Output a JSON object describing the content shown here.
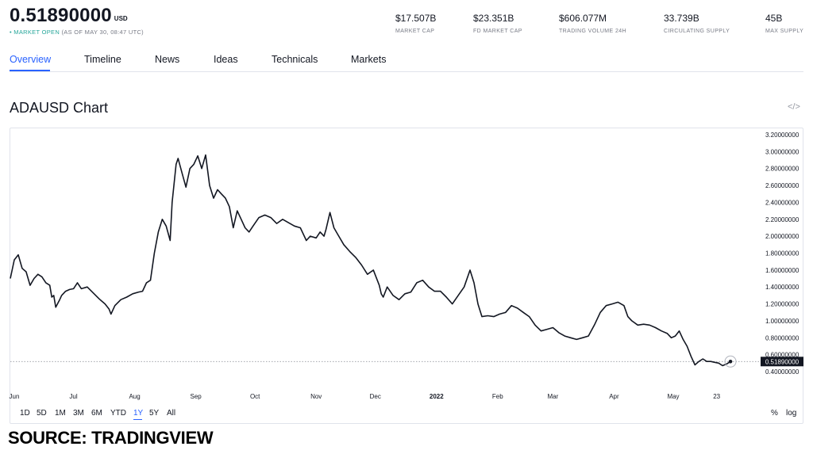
{
  "header": {
    "price": "0.51890000",
    "currency": "USD",
    "status_open": "• MARKET OPEN",
    "status_time": "(AS OF MAY 30, 08:47 UTC)"
  },
  "stats": [
    {
      "value": "$17.507B",
      "label": "MARKET CAP"
    },
    {
      "value": "$23.351B",
      "label": "FD MARKET CAP"
    },
    {
      "value": "$606.077M",
      "label": "TRADING VOLUME 24H"
    },
    {
      "value": "33.739B",
      "label": "CIRCULATING SUPPLY"
    },
    {
      "value": "45B",
      "label": "MAX SUPPLY"
    }
  ],
  "tabs": [
    "Overview",
    "Timeline",
    "News",
    "Ideas",
    "Technicals",
    "Markets"
  ],
  "active_tab": "Overview",
  "chart_section": {
    "title": "ADAUSD Chart",
    "embed_icon": "code-icon"
  },
  "ranges": [
    "1D",
    "5D",
    "1M",
    "3M",
    "6M",
    "YTD",
    "1Y",
    "5Y",
    "All"
  ],
  "active_range": "1Y",
  "scale_buttons": [
    "%",
    "log"
  ],
  "source": "SOURCE: TRADINGVIEW",
  "colors": {
    "accent": "#2962ff",
    "line": "#131722",
    "label_bg": "#131722"
  },
  "chart_data": {
    "type": "line",
    "symbol": "ADAUSD",
    "y_ticks": [
      "3.20000000",
      "3.00000000",
      "2.80000000",
      "2.60000000",
      "2.40000000",
      "2.20000000",
      "2.00000000",
      "1.80000000",
      "1.60000000",
      "1.40000000",
      "1.20000000",
      "1.00000000",
      "0.80000000",
      "0.60000000",
      "0.40000000"
    ],
    "ylim": [
      0.3,
      3.35
    ],
    "x_ticks": [
      {
        "label": "Jun",
        "date": "2021-06-01",
        "bold": false
      },
      {
        "label": "Jul",
        "date": "2021-07-01",
        "bold": false
      },
      {
        "label": "Aug",
        "date": "2021-08-01",
        "bold": false
      },
      {
        "label": "Sep",
        "date": "2021-09-01",
        "bold": false
      },
      {
        "label": "Oct",
        "date": "2021-10-01",
        "bold": false
      },
      {
        "label": "Nov",
        "date": "2021-11-01",
        "bold": false
      },
      {
        "label": "Dec",
        "date": "2021-12-01",
        "bold": false
      },
      {
        "label": "2022",
        "date": "2022-01-01",
        "bold": true
      },
      {
        "label": "Feb",
        "date": "2022-02-01",
        "bold": false
      },
      {
        "label": "Mar",
        "date": "2022-03-01",
        "bold": false
      },
      {
        "label": "Apr",
        "date": "2022-04-01",
        "bold": false
      },
      {
        "label": "May",
        "date": "2022-05-01",
        "bold": false
      },
      {
        "label": "23",
        "date": "2022-05-23",
        "bold": false
      }
    ],
    "last_value": 0.5189,
    "last_value_label": "0.51890000",
    "series": [
      {
        "points": [
          [
            "2021-05-30",
            1.5
          ],
          [
            "2021-06-01",
            1.72
          ],
          [
            "2021-06-03",
            1.78
          ],
          [
            "2021-06-05",
            1.62
          ],
          [
            "2021-06-07",
            1.58
          ],
          [
            "2021-06-09",
            1.42
          ],
          [
            "2021-06-11",
            1.5
          ],
          [
            "2021-06-13",
            1.55
          ],
          [
            "2021-06-15",
            1.52
          ],
          [
            "2021-06-17",
            1.45
          ],
          [
            "2021-06-19",
            1.42
          ],
          [
            "2021-06-20",
            1.28
          ],
          [
            "2021-06-21",
            1.3
          ],
          [
            "2021-06-22",
            1.16
          ],
          [
            "2021-06-24",
            1.25
          ],
          [
            "2021-06-25",
            1.3
          ],
          [
            "2021-06-27",
            1.35
          ],
          [
            "2021-06-29",
            1.37
          ],
          [
            "2021-07-01",
            1.38
          ],
          [
            "2021-07-03",
            1.45
          ],
          [
            "2021-07-05",
            1.38
          ],
          [
            "2021-07-08",
            1.4
          ],
          [
            "2021-07-11",
            1.33
          ],
          [
            "2021-07-14",
            1.26
          ],
          [
            "2021-07-17",
            1.2
          ],
          [
            "2021-07-19",
            1.14
          ],
          [
            "2021-07-20",
            1.08
          ],
          [
            "2021-07-22",
            1.18
          ],
          [
            "2021-07-25",
            1.25
          ],
          [
            "2021-07-28",
            1.28
          ],
          [
            "2021-07-31",
            1.32
          ],
          [
            "2021-08-03",
            1.34
          ],
          [
            "2021-08-05",
            1.35
          ],
          [
            "2021-08-07",
            1.45
          ],
          [
            "2021-08-09",
            1.48
          ],
          [
            "2021-08-11",
            1.8
          ],
          [
            "2021-08-13",
            2.05
          ],
          [
            "2021-08-15",
            2.2
          ],
          [
            "2021-08-17",
            2.12
          ],
          [
            "2021-08-19",
            1.95
          ],
          [
            "2021-08-20",
            2.4
          ],
          [
            "2021-08-22",
            2.85
          ],
          [
            "2021-08-23",
            2.92
          ],
          [
            "2021-08-25",
            2.75
          ],
          [
            "2021-08-27",
            2.58
          ],
          [
            "2021-08-29",
            2.8
          ],
          [
            "2021-08-31",
            2.85
          ],
          [
            "2021-09-02",
            2.95
          ],
          [
            "2021-09-04",
            2.8
          ],
          [
            "2021-09-06",
            2.96
          ],
          [
            "2021-09-08",
            2.6
          ],
          [
            "2021-09-10",
            2.45
          ],
          [
            "2021-09-12",
            2.55
          ],
          [
            "2021-09-14",
            2.5
          ],
          [
            "2021-09-16",
            2.45
          ],
          [
            "2021-09-18",
            2.35
          ],
          [
            "2021-09-20",
            2.1
          ],
          [
            "2021-09-22",
            2.3
          ],
          [
            "2021-09-24",
            2.2
          ],
          [
            "2021-09-26",
            2.1
          ],
          [
            "2021-09-28",
            2.05
          ],
          [
            "2021-09-30",
            2.12
          ],
          [
            "2021-10-03",
            2.22
          ],
          [
            "2021-10-06",
            2.25
          ],
          [
            "2021-10-09",
            2.22
          ],
          [
            "2021-10-12",
            2.15
          ],
          [
            "2021-10-15",
            2.2
          ],
          [
            "2021-10-18",
            2.16
          ],
          [
            "2021-10-21",
            2.12
          ],
          [
            "2021-10-24",
            2.1
          ],
          [
            "2021-10-27",
            1.95
          ],
          [
            "2021-10-29",
            2.0
          ],
          [
            "2021-11-01",
            1.98
          ],
          [
            "2021-11-03",
            2.05
          ],
          [
            "2021-11-05",
            2.0
          ],
          [
            "2021-11-06",
            2.08
          ],
          [
            "2021-11-08",
            2.28
          ],
          [
            "2021-11-10",
            2.1
          ],
          [
            "2021-11-12",
            2.02
          ],
          [
            "2021-11-15",
            1.9
          ],
          [
            "2021-11-18",
            1.82
          ],
          [
            "2021-11-21",
            1.75
          ],
          [
            "2021-11-24",
            1.66
          ],
          [
            "2021-11-27",
            1.55
          ],
          [
            "2021-11-30",
            1.6
          ],
          [
            "2021-12-03",
            1.42
          ],
          [
            "2021-12-04",
            1.32
          ],
          [
            "2021-12-05",
            1.28
          ],
          [
            "2021-12-07",
            1.4
          ],
          [
            "2021-12-10",
            1.3
          ],
          [
            "2021-12-13",
            1.25
          ],
          [
            "2021-12-16",
            1.32
          ],
          [
            "2021-12-19",
            1.34
          ],
          [
            "2021-12-22",
            1.45
          ],
          [
            "2021-12-25",
            1.48
          ],
          [
            "2021-12-28",
            1.4
          ],
          [
            "2021-12-31",
            1.35
          ],
          [
            "2022-01-03",
            1.35
          ],
          [
            "2022-01-06",
            1.28
          ],
          [
            "2022-01-09",
            1.2
          ],
          [
            "2022-01-12",
            1.3
          ],
          [
            "2022-01-15",
            1.4
          ],
          [
            "2022-01-18",
            1.6
          ],
          [
            "2022-01-20",
            1.45
          ],
          [
            "2022-01-22",
            1.2
          ],
          [
            "2022-01-24",
            1.05
          ],
          [
            "2022-01-27",
            1.06
          ],
          [
            "2022-01-30",
            1.05
          ],
          [
            "2022-02-02",
            1.08
          ],
          [
            "2022-02-05",
            1.1
          ],
          [
            "2022-02-08",
            1.18
          ],
          [
            "2022-02-11",
            1.15
          ],
          [
            "2022-02-14",
            1.1
          ],
          [
            "2022-02-17",
            1.05
          ],
          [
            "2022-02-20",
            0.95
          ],
          [
            "2022-02-23",
            0.88
          ],
          [
            "2022-02-26",
            0.9
          ],
          [
            "2022-03-01",
            0.92
          ],
          [
            "2022-03-04",
            0.86
          ],
          [
            "2022-03-07",
            0.82
          ],
          [
            "2022-03-10",
            0.8
          ],
          [
            "2022-03-13",
            0.78
          ],
          [
            "2022-03-16",
            0.8
          ],
          [
            "2022-03-19",
            0.82
          ],
          [
            "2022-03-22",
            0.95
          ],
          [
            "2022-03-25",
            1.1
          ],
          [
            "2022-03-28",
            1.18
          ],
          [
            "2022-03-31",
            1.2
          ],
          [
            "2022-04-03",
            1.22
          ],
          [
            "2022-04-06",
            1.18
          ],
          [
            "2022-04-08",
            1.05
          ],
          [
            "2022-04-10",
            1.0
          ],
          [
            "2022-04-13",
            0.95
          ],
          [
            "2022-04-16",
            0.96
          ],
          [
            "2022-04-19",
            0.95
          ],
          [
            "2022-04-22",
            0.92
          ],
          [
            "2022-04-25",
            0.88
          ],
          [
            "2022-04-28",
            0.85
          ],
          [
            "2022-04-30",
            0.8
          ],
          [
            "2022-05-02",
            0.82
          ],
          [
            "2022-05-04",
            0.88
          ],
          [
            "2022-05-06",
            0.78
          ],
          [
            "2022-05-08",
            0.7
          ],
          [
            "2022-05-10",
            0.58
          ],
          [
            "2022-05-12",
            0.48
          ],
          [
            "2022-05-14",
            0.52
          ],
          [
            "2022-05-16",
            0.55
          ],
          [
            "2022-05-18",
            0.52
          ],
          [
            "2022-05-20",
            0.52
          ],
          [
            "2022-05-22",
            0.51
          ],
          [
            "2022-05-24",
            0.5
          ],
          [
            "2022-05-26",
            0.47
          ],
          [
            "2022-05-28",
            0.49
          ],
          [
            "2022-05-30",
            0.5189
          ]
        ]
      }
    ]
  }
}
